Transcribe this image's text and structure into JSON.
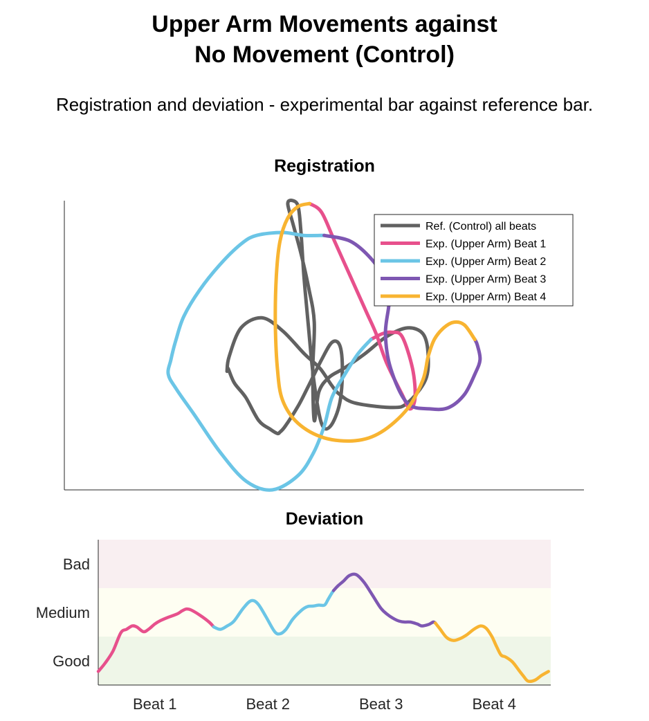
{
  "header": {
    "title_line1": "Upper Arm Movements against",
    "title_line2": "No Movement (Control)",
    "subtitle": "Registration and deviation - experimental bar against reference bar."
  },
  "colors": {
    "ref": "#616161",
    "beat1": "#E7508C",
    "beat2": "#6BC5E6",
    "beat3": "#7E57B2",
    "beat4": "#F8B431",
    "band_bad": "#F9EFF1",
    "band_medium": "#FEFEF2",
    "band_good": "#EFF6E8"
  },
  "chart_data": [
    {
      "type": "line",
      "title": "Registration",
      "legend_position": "top-right",
      "grid": false,
      "xlim": [
        0,
        1
      ],
      "ylim": [
        0,
        1
      ],
      "legend": [
        {
          "label": "Ref. (Control) all beats",
          "color_key": "ref"
        },
        {
          "label": "Exp. (Upper Arm) Beat 1",
          "color_key": "beat1"
        },
        {
          "label": "Exp. (Upper Arm) Beat 2",
          "color_key": "beat2"
        },
        {
          "label": "Exp. (Upper Arm) Beat 3",
          "color_key": "beat3"
        },
        {
          "label": "Exp. (Upper Arm) Beat 4",
          "color_key": "beat4"
        }
      ],
      "series": [
        {
          "name": "Ref. (Control) all beats",
          "color_key": "ref",
          "x": [
            0.313,
            0.317,
            0.34,
            0.38,
            0.42,
            0.462,
            0.492,
            0.515,
            0.53,
            0.56,
            0.63,
            0.66,
            0.695,
            0.7,
            0.69,
            0.66,
            0.62,
            0.578,
            0.538,
            0.51,
            0.49,
            0.481,
            0.478,
            0.481,
            0.47,
            0.455,
            0.44,
            0.43,
            0.44,
            0.45,
            0.455,
            0.461,
            0.469,
            0.48,
            0.495,
            0.512,
            0.53,
            0.535,
            0.53,
            0.515,
            0.495,
            0.47,
            0.45,
            0.425,
            0.415,
            0.41,
            0.396,
            0.374,
            0.349,
            0.327,
            0.315,
            0.313
          ],
          "y": [
            0.41,
            0.46,
            0.56,
            0.595,
            0.55,
            0.47,
            0.42,
            0.36,
            0.33,
            0.3,
            0.285,
            0.3,
            0.38,
            0.47,
            0.54,
            0.56,
            0.53,
            0.47,
            0.42,
            0.39,
            0.34,
            0.24,
            0.41,
            0.58,
            0.7,
            0.82,
            0.92,
            0.99,
            1.0,
            0.98,
            0.9,
            0.74,
            0.58,
            0.38,
            0.23,
            0.22,
            0.3,
            0.42,
            0.5,
            0.51,
            0.45,
            0.36,
            0.29,
            0.22,
            0.2,
            0.195,
            0.21,
            0.24,
            0.32,
            0.37,
            0.42,
            0.41
          ]
        },
        {
          "name": "Exp. (Upper Arm) Beat 1",
          "color_key": "beat1",
          "x": [
            0.472,
            0.495,
            0.52,
            0.55,
            0.58,
            0.6,
            0.62,
            0.65,
            0.665,
            0.675,
            0.67,
            0.65,
            0.63,
            0.612,
            0.59
          ],
          "y": [
            0.99,
            0.96,
            0.86,
            0.74,
            0.62,
            0.54,
            0.44,
            0.33,
            0.28,
            0.32,
            0.42,
            0.53,
            0.545,
            0.54,
            0.52
          ]
        },
        {
          "name": "Exp. (Upper Arm) Beat 2",
          "color_key": "beat2",
          "x": [
            0.59,
            0.565,
            0.54,
            0.515,
            0.5,
            0.48,
            0.45,
            0.4,
            0.35,
            0.3,
            0.25,
            0.215,
            0.2,
            0.205,
            0.215,
            0.23,
            0.26,
            0.3,
            0.34,
            0.37,
            0.42,
            0.46,
            0.5
          ],
          "y": [
            0.52,
            0.47,
            0.4,
            0.32,
            0.22,
            0.13,
            0.05,
            0.0,
            0.03,
            0.13,
            0.26,
            0.35,
            0.4,
            0.45,
            0.52,
            0.6,
            0.69,
            0.78,
            0.85,
            0.88,
            0.89,
            0.88,
            0.88
          ]
        },
        {
          "name": "Exp. (Upper Arm) Beat 3",
          "color_key": "beat3",
          "x": [
            0.5,
            0.55,
            0.59,
            0.62,
            0.625,
            0.618,
            0.628,
            0.66,
            0.705,
            0.74,
            0.77,
            0.79,
            0.8,
            0.795,
            0.79
          ],
          "y": [
            0.88,
            0.86,
            0.8,
            0.72,
            0.65,
            0.54,
            0.42,
            0.3,
            0.28,
            0.285,
            0.33,
            0.4,
            0.45,
            0.5,
            0.52
          ]
        },
        {
          "name": "Exp. (Upper Arm) Beat 4",
          "color_key": "beat4",
          "x": [
            0.79,
            0.77,
            0.75,
            0.73,
            0.712,
            0.7,
            0.69,
            0.66,
            0.61,
            0.56,
            0.5,
            0.45,
            0.42,
            0.41,
            0.406,
            0.408,
            0.415,
            0.43,
            0.45,
            0.472
          ],
          "y": [
            0.52,
            0.57,
            0.58,
            0.56,
            0.52,
            0.46,
            0.38,
            0.28,
            0.2,
            0.17,
            0.18,
            0.23,
            0.31,
            0.42,
            0.58,
            0.74,
            0.86,
            0.94,
            0.98,
            0.99
          ]
        }
      ]
    },
    {
      "type": "line",
      "title": "Deviation",
      "categories": [
        "Beat 1",
        "Beat 2",
        "Beat 3",
        "Beat 4"
      ],
      "y_bands": [
        "Good",
        "Medium",
        "Bad"
      ],
      "xlim": [
        0,
        4
      ],
      "ylim": [
        0,
        3
      ],
      "grid": false,
      "series": [
        {
          "name": "Beat 1",
          "color_key": "beat1",
          "x": [
            0.0,
            0.06,
            0.13,
            0.2,
            0.25,
            0.3,
            0.34,
            0.4,
            0.45,
            0.5,
            0.55,
            0.62,
            0.7,
            0.74,
            0.78,
            0.82,
            0.9,
            0.98,
            1.02
          ],
          "y": [
            0.28,
            0.45,
            0.7,
            1.08,
            1.15,
            1.22,
            1.2,
            1.1,
            1.16,
            1.26,
            1.33,
            1.4,
            1.47,
            1.53,
            1.57,
            1.55,
            1.44,
            1.3,
            1.2
          ]
        },
        {
          "name": "Beat 2",
          "color_key": "beat2",
          "x": [
            1.02,
            1.08,
            1.14,
            1.2,
            1.28,
            1.35,
            1.41,
            1.48,
            1.56,
            1.61,
            1.66,
            1.72,
            1.8,
            1.85,
            1.9,
            1.95,
            2.0,
            2.03,
            2.06,
            2.08
          ],
          "y": [
            1.2,
            1.15,
            1.22,
            1.32,
            1.58,
            1.74,
            1.68,
            1.42,
            1.1,
            1.06,
            1.15,
            1.36,
            1.55,
            1.62,
            1.63,
            1.65,
            1.65,
            1.76,
            1.88,
            1.95
          ]
        },
        {
          "name": "Beat 3",
          "color_key": "beat3",
          "x": [
            2.08,
            2.12,
            2.17,
            2.22,
            2.28,
            2.35,
            2.42,
            2.5,
            2.56,
            2.62,
            2.66,
            2.71,
            2.76,
            2.82,
            2.86,
            2.92,
            2.96,
            2.98
          ],
          "y": [
            1.95,
            2.05,
            2.15,
            2.26,
            2.28,
            2.12,
            1.87,
            1.58,
            1.45,
            1.36,
            1.32,
            1.3,
            1.3,
            1.26,
            1.22,
            1.25,
            1.3,
            1.28
          ]
        },
        {
          "name": "Beat 4",
          "color_key": "beat4",
          "x": [
            2.98,
            3.02,
            3.08,
            3.14,
            3.2,
            3.26,
            3.32,
            3.38,
            3.43,
            3.48,
            3.52,
            3.56,
            3.6,
            3.66,
            3.72,
            3.76,
            3.8,
            3.86,
            3.92,
            3.98
          ],
          "y": [
            1.28,
            1.16,
            0.98,
            0.92,
            0.96,
            1.04,
            1.15,
            1.22,
            1.17,
            1.0,
            0.8,
            0.62,
            0.58,
            0.48,
            0.3,
            0.18,
            0.08,
            0.1,
            0.2,
            0.28
          ]
        }
      ]
    }
  ]
}
